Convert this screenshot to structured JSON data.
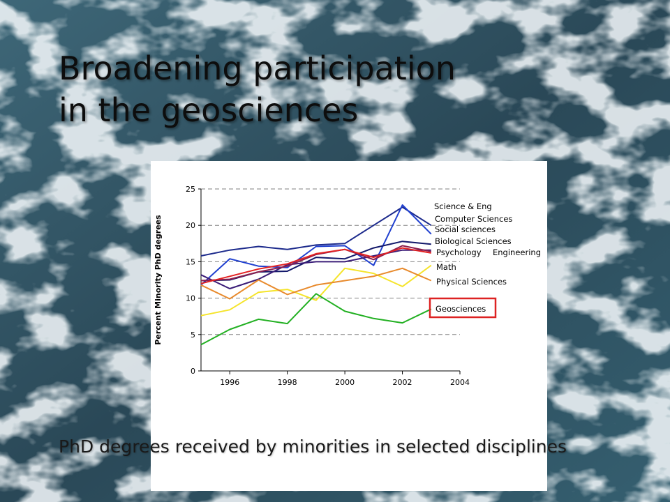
{
  "slide": {
    "title_lines": [
      "Broadening participation",
      "in the geosciences"
    ],
    "caption": "PhD degrees received by minorities in selected disciplines"
  },
  "chart_data": {
    "type": "line",
    "title": "",
    "xlabel": "",
    "ylabel": "Percent Minority PhD degrees",
    "xlim": [
      1995,
      2004
    ],
    "ylim": [
      0,
      25
    ],
    "x_ticks": [
      1996,
      1998,
      2000,
      2002,
      2004
    ],
    "y_ticks": [
      0,
      5,
      10,
      15,
      20,
      25
    ],
    "grid": "horizontal dashed",
    "legend": "right, labels beside series ends",
    "highlight": "Geosciences",
    "highlight_color": "#dd2222",
    "x": [
      1995,
      1996,
      1997,
      1998,
      1999,
      2000,
      2001,
      2002,
      2003
    ],
    "series": [
      {
        "name": "Science & Eng",
        "color": "#1c2a8c",
        "values": [
          15.8,
          16.6,
          17.1,
          16.7,
          17.3,
          17.5,
          20.0,
          22.5,
          20.0
        ]
      },
      {
        "name": "Computer Sciences",
        "color": "#1f3fcf",
        "values": [
          11.8,
          15.4,
          14.4,
          14.2,
          17.1,
          17.2,
          14.5,
          22.8,
          18.8
        ]
      },
      {
        "name": "Social sciences",
        "color": "#12186a",
        "values": [
          12.4,
          12.5,
          13.6,
          13.7,
          15.6,
          15.4,
          16.9,
          17.8,
          17.4
        ]
      },
      {
        "name": "Biological Sciences",
        "color": "#3b1d78",
        "values": [
          13.2,
          11.3,
          12.6,
          14.6,
          15.0,
          15.0,
          15.8,
          16.6,
          16.6
        ]
      },
      {
        "name": "Psychology",
        "color": "#8a1e4d",
        "values": [
          12.4,
          12.6,
          13.6,
          14.4,
          16.0,
          16.7,
          15.3,
          17.2,
          16.4
        ]
      },
      {
        "name": "Engineering",
        "color": "#e32222",
        "values": [
          12.0,
          13.0,
          14.0,
          14.7,
          16.1,
          16.7,
          15.6,
          16.9,
          16.2
        ]
      },
      {
        "name": "Math",
        "color": "#f5e42a",
        "values": [
          7.6,
          8.4,
          10.8,
          11.2,
          9.7,
          14.1,
          13.4,
          11.6,
          14.5
        ]
      },
      {
        "name": "Physical Sciences",
        "color": "#e88a2c",
        "values": [
          11.8,
          9.9,
          12.5,
          10.5,
          11.8,
          12.4,
          13.0,
          14.1,
          12.4
        ]
      },
      {
        "name": "Geosciences",
        "color": "#22b022",
        "values": [
          3.6,
          5.7,
          7.1,
          6.5,
          10.6,
          8.2,
          7.2,
          6.6,
          8.5
        ]
      }
    ]
  }
}
